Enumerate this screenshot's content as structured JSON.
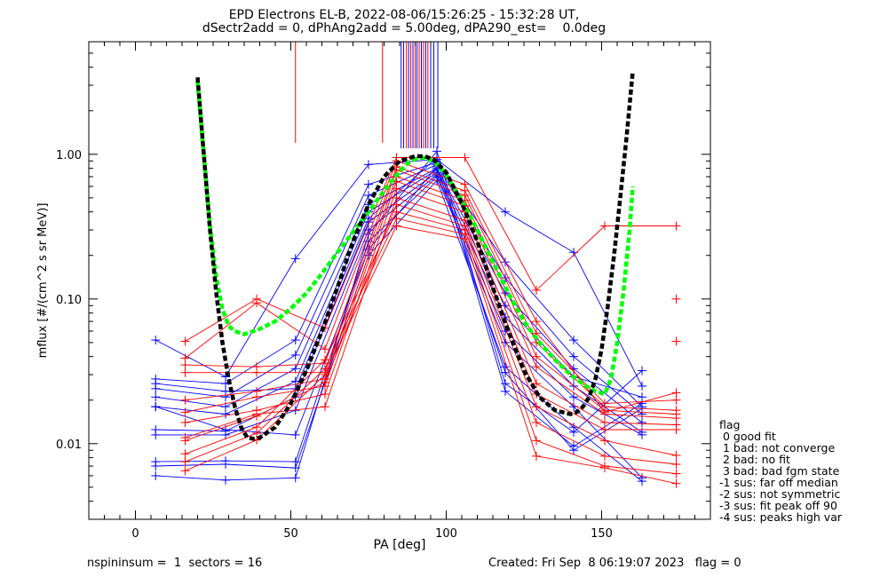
{
  "header": {
    "title_line1": "EPD Electrons EL-B, 2022-08-06/15:26:25 - 15:32:28 UT,",
    "title_line2": "dSectr2add = 0, dPhAng2add = 5.00deg, dPA290_est=    0.0deg"
  },
  "footer": {
    "left": "nspininsum =  1  sectors = 16",
    "right": "Created: Fri Sep  8 06:19:07 2023   flag = 0"
  },
  "legend": {
    "title": "flag",
    "items": [
      " 0 good fit",
      " 1 bad: not converge",
      " 2 bad: no fit",
      " 3 bad: bad fgm state",
      "-1 sus: far off median",
      "-2 sus: not symmetric",
      "-3 sus: fit peak off 90",
      "-4 sus: peaks high var"
    ]
  },
  "chart_data": {
    "type": "line",
    "title": "EPD Electrons EL-B, 2022-08-06/15:26:25 - 15:32:28 UT,",
    "subtitle": "dSectr2add = 0, dPhAng2add = 5.00deg, dPA290_est=    0.0deg",
    "xlabel": "PA [deg]",
    "ylabel": "mflux [#/(cm^2 s sr MeV)]",
    "xlim": [
      -15,
      185
    ],
    "ylim": [
      0.003,
      6
    ],
    "yscale": "log",
    "xticks": [
      0,
      50,
      100,
      150
    ],
    "xtick_labels": [
      "0",
      "50",
      "100",
      "150"
    ],
    "yticks": [
      0.01,
      0.1,
      1.0
    ],
    "ytick_labels": [
      "0.01",
      "0.10",
      "1.00"
    ],
    "colors": {
      "red": "#ff0000",
      "blue": "#0000ff",
      "green": "#00ff00",
      "black": "#000000"
    },
    "vertical_lines": [
      {
        "x": 51.5,
        "top": 6,
        "bottom": 1.2,
        "color": "red"
      },
      {
        "x": 79.5,
        "top": 6,
        "bottom": 1.2,
        "color": "red"
      },
      {
        "x": 85.5,
        "top": 6,
        "bottom": 1.1,
        "color": "blue"
      },
      {
        "x": 86.3,
        "top": 6,
        "bottom": 1.1,
        "color": "blue"
      },
      {
        "x": 87.2,
        "top": 6,
        "bottom": 1.1,
        "color": "red"
      },
      {
        "x": 87.9,
        "top": 6,
        "bottom": 1.1,
        "color": "blue"
      },
      {
        "x": 88.6,
        "top": 6,
        "bottom": 1.1,
        "color": "red"
      },
      {
        "x": 89.3,
        "top": 6,
        "bottom": 1.1,
        "color": "blue"
      },
      {
        "x": 90.0,
        "top": 6,
        "bottom": 1.1,
        "color": "red"
      },
      {
        "x": 90.6,
        "top": 6,
        "bottom": 1.1,
        "color": "blue"
      },
      {
        "x": 91.3,
        "top": 6,
        "bottom": 1.1,
        "color": "red"
      },
      {
        "x": 92.0,
        "top": 6,
        "bottom": 1.1,
        "color": "blue"
      },
      {
        "x": 92.7,
        "top": 6,
        "bottom": 1.1,
        "color": "red"
      },
      {
        "x": 93.4,
        "top": 6,
        "bottom": 1.1,
        "color": "blue"
      },
      {
        "x": 94.1,
        "top": 6,
        "bottom": 1.1,
        "color": "red"
      },
      {
        "x": 95.0,
        "top": 6,
        "bottom": 1.1,
        "color": "blue"
      },
      {
        "x": 96.0,
        "top": 6,
        "bottom": 1.1,
        "color": "blue"
      },
      {
        "x": 97.3,
        "top": 6,
        "bottom": 1.1,
        "color": "blue"
      }
    ],
    "series": [
      {
        "color": "blue",
        "x": [
          6.5,
          29,
          51.5,
          75,
          97,
          119,
          141,
          163
        ],
        "y": [
          0.052,
          0.029,
          0.19,
          0.85,
          0.92,
          0.4,
          0.21,
          0.025
        ]
      },
      {
        "color": "blue",
        "x": [
          6.5,
          29,
          51.5,
          75,
          97,
          119,
          141,
          163
        ],
        "y": [
          0.028,
          0.026,
          0.052,
          0.62,
          0.88,
          0.18,
          0.052,
          0.018
        ]
      },
      {
        "color": "blue",
        "x": [
          6.5,
          29,
          51.5,
          75,
          97,
          119,
          141,
          163
        ],
        "y": [
          0.024,
          0.021,
          0.041,
          0.52,
          0.85,
          0.14,
          0.04,
          0.016
        ]
      },
      {
        "color": "blue",
        "x": [
          6.5,
          29,
          51.5,
          75,
          97,
          119,
          141,
          163
        ],
        "y": [
          0.021,
          0.018,
          0.033,
          0.45,
          0.8,
          0.11,
          0.033,
          0.014
        ]
      },
      {
        "color": "blue",
        "x": [
          6.5,
          29,
          51.5,
          75,
          97,
          119,
          141,
          163
        ],
        "y": [
          0.018,
          0.016,
          0.027,
          0.4,
          0.78,
          0.09,
          0.029,
          0.021
        ]
      },
      {
        "color": "blue",
        "x": [
          6.5,
          29,
          51.5,
          75,
          97,
          119,
          141,
          163
        ],
        "y": [
          0.0125,
          0.0122,
          0.021,
          0.34,
          0.75,
          0.075,
          0.025,
          0.012
        ]
      },
      {
        "color": "blue",
        "x": [
          6.5,
          29,
          51.5,
          75,
          97,
          119,
          141,
          163
        ],
        "y": [
          0.0115,
          0.0115,
          0.017,
          0.3,
          0.72,
          0.06,
          0.021,
          0.0115
        ]
      },
      {
        "color": "blue",
        "x": [
          6.5,
          29,
          51.5,
          75,
          97,
          119,
          141,
          163
        ],
        "y": [
          0.0075,
          0.0076,
          0.0075,
          0.25,
          0.7,
          0.05,
          0.018,
          0.0058
        ]
      },
      {
        "color": "blue",
        "x": [
          6.5,
          29,
          51.5,
          75,
          97,
          119,
          141,
          163
        ],
        "y": [
          0.007,
          0.0072,
          0.0068,
          0.2,
          0.66,
          0.034,
          0.013,
          0.0055
        ]
      },
      {
        "color": "blue",
        "x": [
          6.5,
          29,
          51.5,
          75,
          97,
          119,
          141,
          163
        ],
        "y": [
          0.006,
          0.0056,
          0.0058,
          0.28,
          1.05,
          0.026,
          0.012,
          0.032
        ]
      },
      {
        "color": "blue",
        "x": [
          6.5,
          29,
          51.5,
          75,
          97,
          119,
          141,
          163
        ],
        "y": [
          0.026,
          0.023,
          0.024,
          0.36,
          0.95,
          0.023,
          0.0096,
          0.019
        ]
      },
      {
        "color": "blue",
        "x": [
          6.5,
          29,
          51.5,
          75,
          97,
          119,
          141,
          163
        ],
        "y": [
          0.018,
          0.0125,
          0.0115,
          0.22,
          0.82,
          0.031,
          0.009,
          0.0175
        ]
      },
      {
        "color": "red",
        "x": [
          16,
          39,
          61,
          84,
          106,
          129,
          151,
          174
        ],
        "y": [
          0.051,
          0.1,
          0.063,
          0.95,
          0.95,
          0.115,
          0.32,
          0.32
        ]
      },
      {
        "color": "red",
        "x": [
          16,
          39,
          61,
          84,
          106,
          129,
          151,
          174
        ],
        "y": [
          0.039,
          0.094,
          0.045,
          0.9,
          0.62,
          0.07,
          0.0165,
          0.0225
        ]
      },
      {
        "color": "red",
        "x": [
          16,
          39,
          61,
          84,
          106,
          129,
          151,
          174
        ],
        "y": [
          0.035,
          0.034,
          0.036,
          0.82,
          0.56,
          0.058,
          0.019,
          0.02
        ]
      },
      {
        "color": "red",
        "x": [
          16,
          39,
          61,
          84,
          106,
          129,
          151,
          174
        ],
        "y": [
          0.031,
          0.031,
          0.031,
          0.78,
          0.52,
          0.05,
          0.018,
          0.017
        ]
      },
      {
        "color": "red",
        "x": [
          16,
          39,
          61,
          84,
          106,
          129,
          151,
          174
        ],
        "y": [
          0.02,
          0.023,
          0.028,
          0.7,
          0.48,
          0.04,
          0.017,
          0.016
        ]
      },
      {
        "color": "red",
        "x": [
          16,
          39,
          61,
          84,
          106,
          129,
          151,
          174
        ],
        "y": [
          0.0165,
          0.021,
          0.025,
          0.65,
          0.44,
          0.034,
          0.016,
          0.015
        ]
      },
      {
        "color": "red",
        "x": [
          16,
          39,
          61,
          84,
          106,
          129,
          151,
          174
        ],
        "y": [
          0.014,
          0.017,
          0.022,
          0.58,
          0.4,
          0.026,
          0.014,
          0.0135
        ]
      },
      {
        "color": "red",
        "x": [
          16,
          39,
          61,
          84,
          106,
          129,
          151,
          174
        ],
        "y": [
          0.011,
          0.016,
          0.018,
          0.5,
          0.35,
          0.022,
          0.0125,
          0.0125
        ]
      },
      {
        "color": "red",
        "x": [
          16,
          39,
          61,
          84,
          106,
          129,
          151,
          174
        ],
        "y": [
          0.0105,
          0.0155,
          0.0265,
          0.45,
          0.32,
          0.018,
          0.0105,
          0.0083
        ]
      },
      {
        "color": "red",
        "x": [
          16,
          39,
          61,
          84,
          106,
          129,
          151,
          174
        ],
        "y": [
          0.0085,
          0.013,
          0.038,
          0.4,
          0.3,
          0.014,
          0.0082,
          0.0072
        ]
      },
      {
        "color": "red",
        "x": [
          16,
          39,
          61,
          84,
          106,
          129,
          151,
          174
        ],
        "y": [
          0.0075,
          0.0118,
          0.033,
          0.36,
          0.28,
          0.0105,
          0.007,
          0.0062
        ]
      },
      {
        "color": "red",
        "x": [
          16,
          39,
          61,
          84,
          106,
          129,
          151,
          174
        ],
        "y": [
          0.0065,
          0.0106,
          0.03,
          0.32,
          0.26,
          0.0082,
          0.0068,
          0.0053
        ]
      }
    ],
    "extra_points": [
      {
        "x": 174,
        "y": 0.1,
        "color": "red"
      },
      {
        "x": 174,
        "y": 0.051,
        "color": "red"
      }
    ],
    "fit_curves": [
      {
        "color": "green",
        "style": "dashed",
        "x": [
          20,
          22,
          24,
          26,
          28,
          30,
          32,
          35,
          40,
          45,
          50,
          55,
          60,
          65,
          70,
          75,
          80,
          85,
          88,
          91,
          94,
          97,
          100,
          105,
          110,
          115,
          120,
          125,
          130,
          135,
          140,
          145,
          148,
          151,
          153,
          155,
          157,
          159,
          160
        ],
        "y": [
          3.2,
          1.0,
          0.32,
          0.14,
          0.085,
          0.065,
          0.06,
          0.057,
          0.062,
          0.07,
          0.086,
          0.11,
          0.15,
          0.21,
          0.29,
          0.4,
          0.56,
          0.76,
          0.88,
          0.95,
          0.94,
          0.86,
          0.72,
          0.48,
          0.3,
          0.18,
          0.11,
          0.07,
          0.05,
          0.038,
          0.03,
          0.025,
          0.023,
          0.022,
          0.028,
          0.05,
          0.11,
          0.3,
          0.6
        ]
      },
      {
        "color": "black",
        "style": "dashed",
        "x": [
          20,
          22,
          24,
          26,
          28,
          30,
          32,
          34,
          36,
          38,
          40,
          45,
          50,
          55,
          60,
          65,
          70,
          75,
          80,
          85,
          90,
          93,
          96,
          100,
          105,
          110,
          115,
          120,
          125,
          130,
          135,
          140,
          142,
          144,
          146,
          148,
          150,
          152,
          154,
          156,
          158,
          160
        ],
        "y": [
          3.4,
          1.0,
          0.3,
          0.11,
          0.05,
          0.028,
          0.018,
          0.013,
          0.011,
          0.0108,
          0.011,
          0.013,
          0.019,
          0.032,
          0.06,
          0.12,
          0.25,
          0.45,
          0.7,
          0.9,
          0.97,
          0.97,
          0.92,
          0.75,
          0.46,
          0.25,
          0.12,
          0.06,
          0.032,
          0.021,
          0.017,
          0.016,
          0.0165,
          0.018,
          0.021,
          0.028,
          0.045,
          0.09,
          0.2,
          0.5,
          1.3,
          3.7
        ]
      }
    ]
  }
}
